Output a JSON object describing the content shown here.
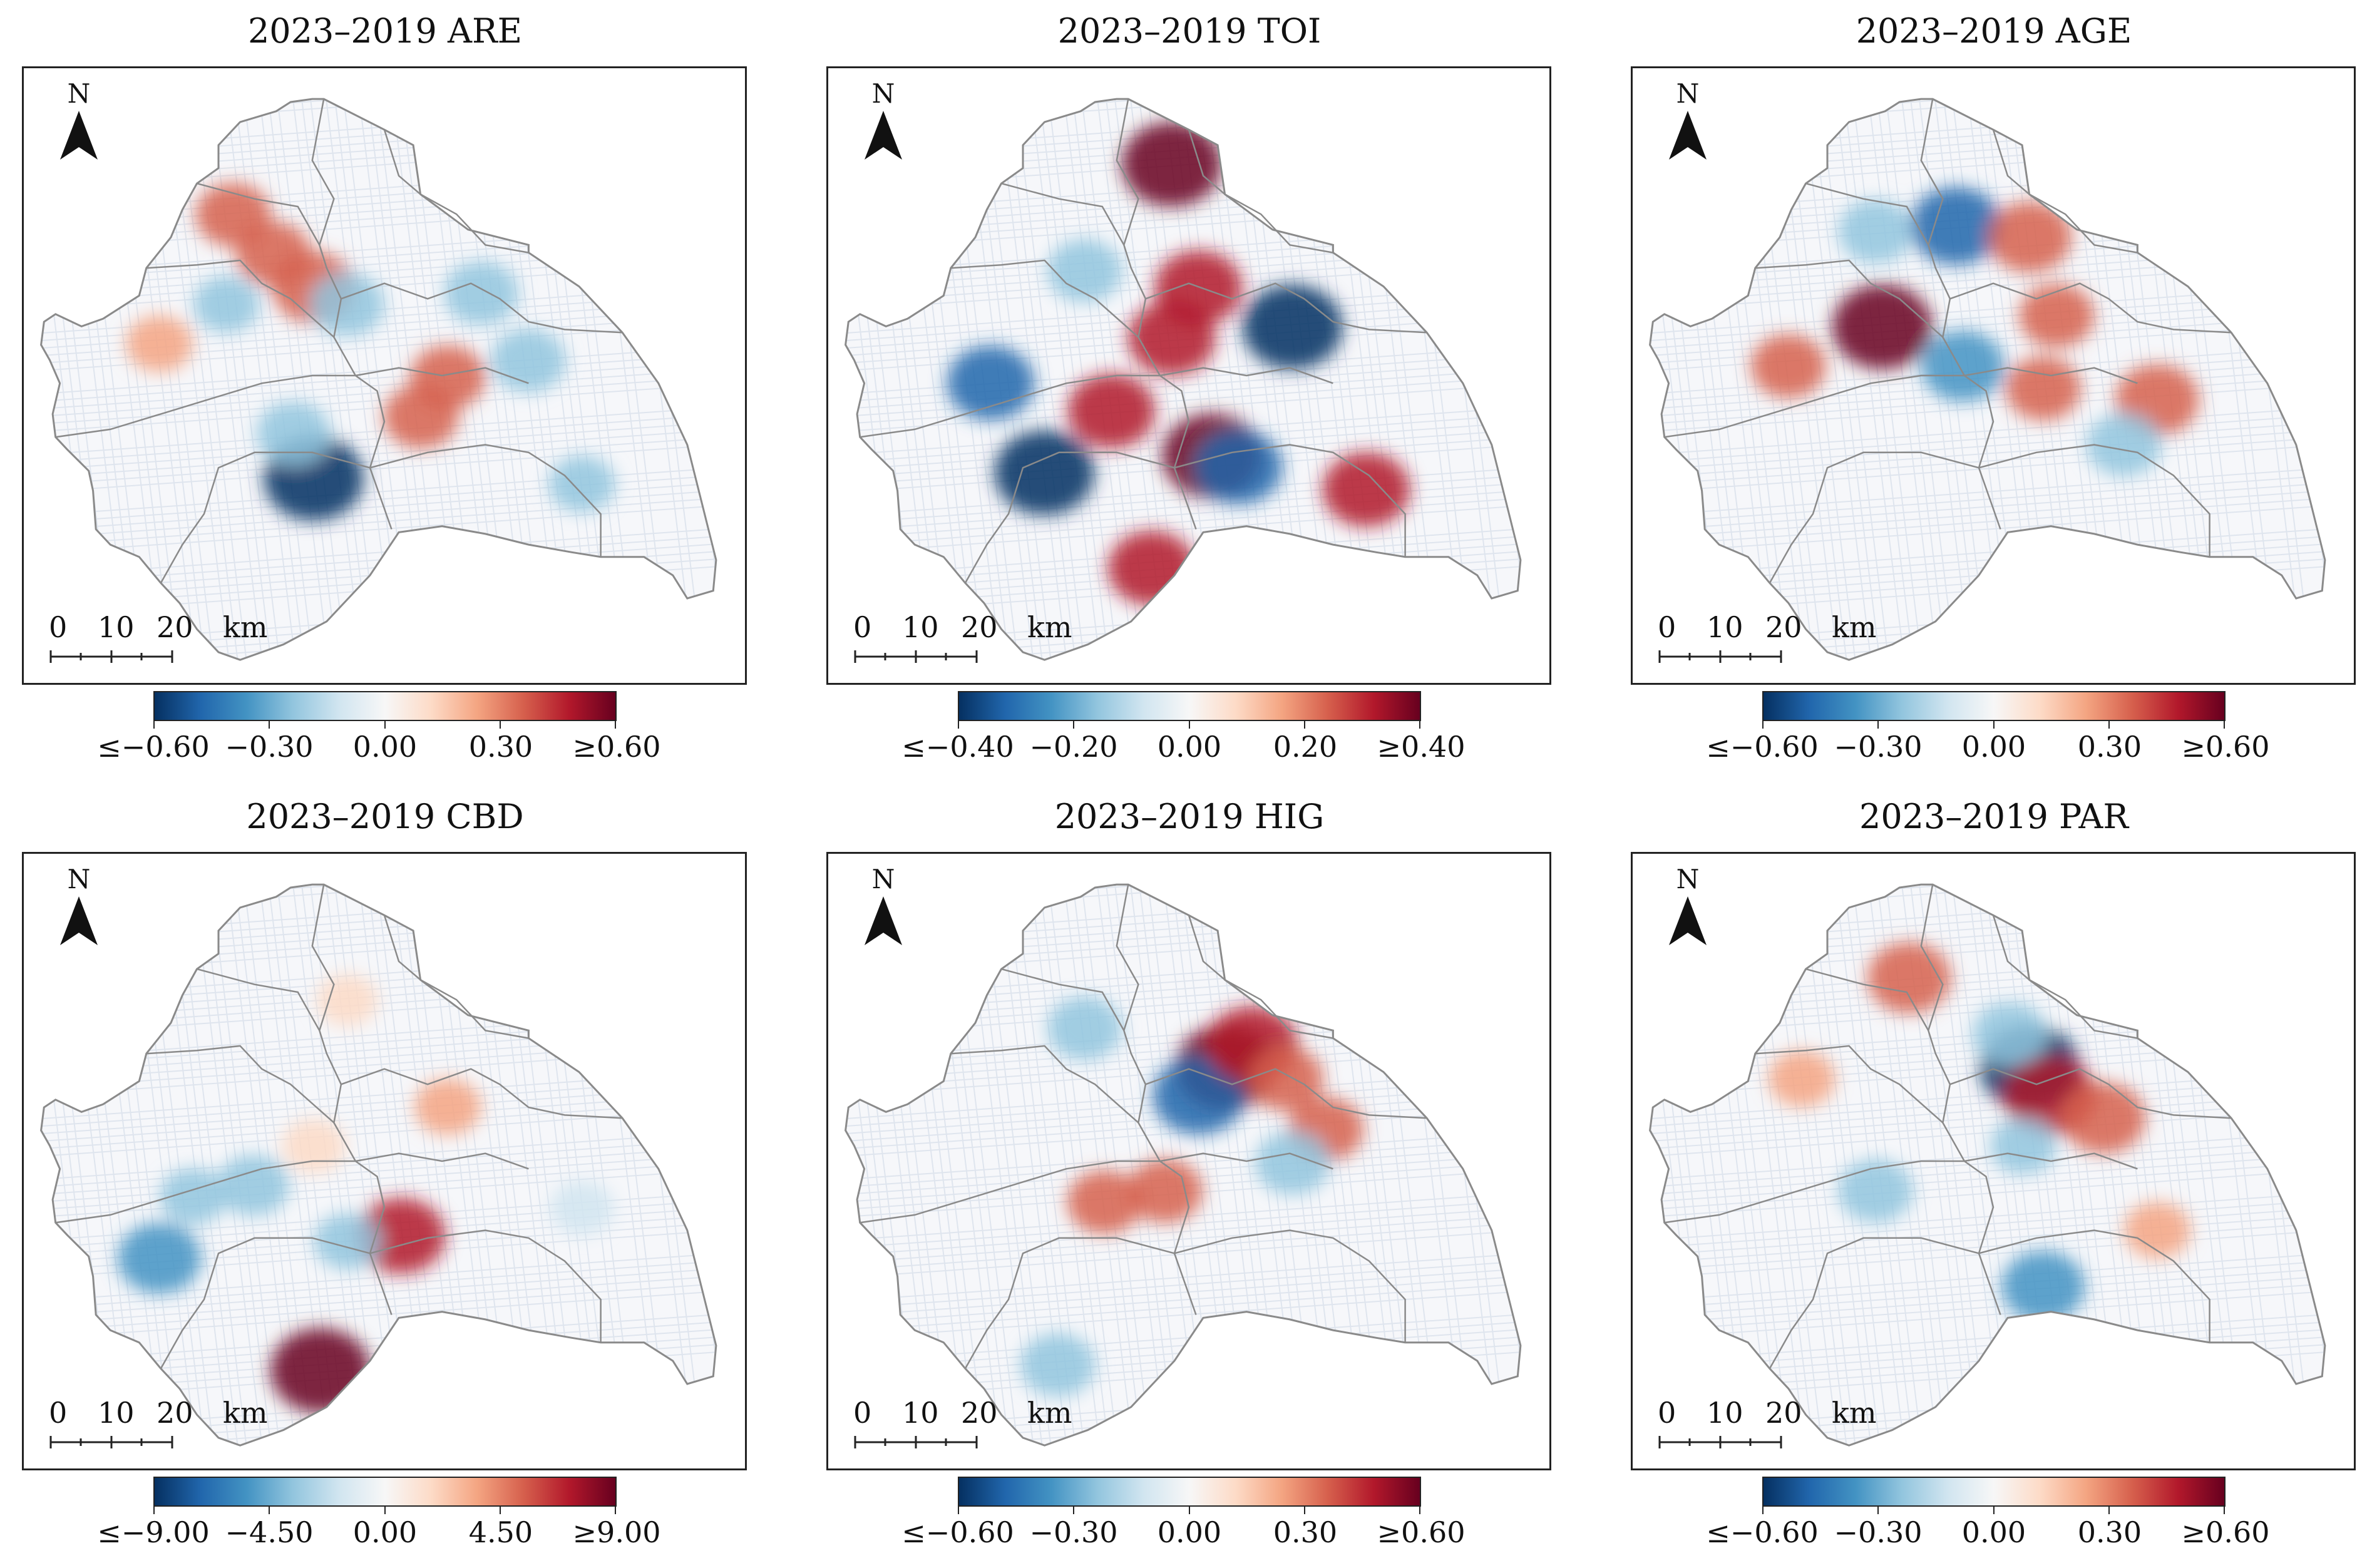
{
  "figure": {
    "north_label": "N",
    "scale_bar": {
      "labels": [
        "0",
        "10",
        "20"
      ],
      "unit": "km"
    },
    "colormap": [
      "#053061",
      "#2166ac",
      "#4393c3",
      "#92c5de",
      "#d1e5f0",
      "#f7f7f7",
      "#fddbc7",
      "#f4a582",
      "#d6604d",
      "#b2182b",
      "#67001f"
    ],
    "boundary_color": "#8a8a8a"
  },
  "chart_data": [
    {
      "type": "heatmap",
      "title": "2023–2019 ARE",
      "colorbar": {
        "min": -0.6,
        "max": 0.6,
        "tick_labels": [
          "≤−0.60",
          "−0.30",
          "0.00",
          "0.30",
          "≥0.60"
        ]
      },
      "hotspots": [
        {
          "lon": 0.4,
          "lat": 0.31,
          "value": -0.6
        },
        {
          "lon": 0.37,
          "lat": 0.39,
          "value": -0.3
        },
        {
          "lon": 0.56,
          "lat": 0.42,
          "value": 0.3
        },
        {
          "lon": 0.4,
          "lat": 0.65,
          "value": 0.4
        },
        {
          "lon": 0.6,
          "lat": 0.49,
          "value": 0.3
        },
        {
          "lon": 0.65,
          "lat": 0.64,
          "value": -0.3
        },
        {
          "lon": 0.28,
          "lat": 0.78,
          "value": 0.3
        },
        {
          "lon": 0.34,
          "lat": 0.71,
          "value": 0.3
        },
        {
          "lon": 0.17,
          "lat": 0.55,
          "value": 0.2
        },
        {
          "lon": 0.45,
          "lat": 0.62,
          "value": -0.3
        },
        {
          "lon": 0.72,
          "lat": 0.52,
          "value": -0.3
        },
        {
          "lon": 0.27,
          "lat": 0.62,
          "value": -0.2
        },
        {
          "lon": 0.8,
          "lat": 0.3,
          "value": -0.2
        }
      ]
    },
    {
      "type": "heatmap",
      "title": "2023–2019 TOI",
      "colorbar": {
        "min": -0.4,
        "max": 0.4,
        "tick_labels": [
          "≤−0.40",
          "−0.20",
          "0.00",
          "0.20",
          "≥0.40"
        ]
      },
      "hotspots": [
        {
          "lon": 0.66,
          "lat": 0.58,
          "value": -0.4
        },
        {
          "lon": 0.48,
          "lat": 0.87,
          "value": 0.4
        },
        {
          "lon": 0.54,
          "lat": 0.35,
          "value": 0.4
        },
        {
          "lon": 0.29,
          "lat": 0.32,
          "value": -0.4
        },
        {
          "lon": 0.48,
          "lat": 0.56,
          "value": 0.3
        },
        {
          "lon": 0.39,
          "lat": 0.43,
          "value": 0.3
        },
        {
          "lon": 0.58,
          "lat": 0.33,
          "value": -0.3
        },
        {
          "lon": 0.77,
          "lat": 0.29,
          "value": 0.3
        },
        {
          "lon": 0.21,
          "lat": 0.48,
          "value": -0.3
        },
        {
          "lon": 0.52,
          "lat": 0.65,
          "value": 0.3
        },
        {
          "lon": 0.45,
          "lat": 0.15,
          "value": 0.3
        },
        {
          "lon": 0.35,
          "lat": 0.68,
          "value": -0.2
        }
      ]
    },
    {
      "type": "heatmap",
      "title": "2023–2019 AGE",
      "colorbar": {
        "min": -0.6,
        "max": 0.6,
        "tick_labels": [
          "≤−0.60",
          "−0.30",
          "0.00",
          "0.30",
          "≥0.60"
        ]
      },
      "hotspots": [
        {
          "lon": 0.34,
          "lat": 0.58,
          "value": 0.6
        },
        {
          "lon": 0.45,
          "lat": 0.76,
          "value": -0.5
        },
        {
          "lon": 0.56,
          "lat": 0.74,
          "value": 0.4
        },
        {
          "lon": 0.6,
          "lat": 0.6,
          "value": 0.3
        },
        {
          "lon": 0.75,
          "lat": 0.45,
          "value": 0.4
        },
        {
          "lon": 0.46,
          "lat": 0.51,
          "value": -0.4
        },
        {
          "lon": 0.2,
          "lat": 0.51,
          "value": 0.3
        },
        {
          "lon": 0.7,
          "lat": 0.37,
          "value": -0.3
        },
        {
          "lon": 0.58,
          "lat": 0.47,
          "value": 0.3
        },
        {
          "lon": 0.33,
          "lat": 0.75,
          "value": -0.3
        }
      ]
    },
    {
      "type": "heatmap",
      "title": "2023–2019 CBD",
      "colorbar": {
        "min": -9.0,
        "max": 9.0,
        "tick_labels": [
          "≤−9.00",
          "−4.50",
          "0.00",
          "4.50",
          "≥9.00"
        ]
      },
      "hotspots": [
        {
          "lon": 0.41,
          "lat": 0.12,
          "value": 9.0
        },
        {
          "lon": 0.53,
          "lat": 0.36,
          "value": 7.0
        },
        {
          "lon": 0.17,
          "lat": 0.32,
          "value": -6.0
        },
        {
          "lon": 0.31,
          "lat": 0.45,
          "value": -4.0
        },
        {
          "lon": 0.22,
          "lat": 0.43,
          "value": -3.0
        },
        {
          "lon": 0.6,
          "lat": 0.59,
          "value": 3.0
        },
        {
          "lon": 0.4,
          "lat": 0.52,
          "value": 2.5
        },
        {
          "lon": 0.45,
          "lat": 0.35,
          "value": -3.0
        },
        {
          "lon": 0.45,
          "lat": 0.78,
          "value": 2.0
        },
        {
          "lon": 0.8,
          "lat": 0.41,
          "value": -2.5
        }
      ]
    },
    {
      "type": "heatmap",
      "title": "2023–2019 HIG",
      "colorbar": {
        "min": -0.6,
        "max": 0.6,
        "tick_labels": [
          "≤−0.60",
          "−0.30",
          "0.00",
          "0.30",
          "≥0.60"
        ]
      },
      "hotspots": [
        {
          "lon": 0.56,
          "lat": 0.66,
          "value": 0.6
        },
        {
          "lon": 0.52,
          "lat": 0.61,
          "value": -0.5
        },
        {
          "lon": 0.6,
          "lat": 0.7,
          "value": 0.5
        },
        {
          "lon": 0.65,
          "lat": 0.64,
          "value": 0.3
        },
        {
          "lon": 0.38,
          "lat": 0.42,
          "value": 0.3
        },
        {
          "lon": 0.35,
          "lat": 0.73,
          "value": -0.3
        },
        {
          "lon": 0.31,
          "lat": 0.13,
          "value": -0.3
        },
        {
          "lon": 0.71,
          "lat": 0.55,
          "value": 0.3
        },
        {
          "lon": 0.66,
          "lat": 0.49,
          "value": -0.3
        },
        {
          "lon": 0.47,
          "lat": 0.44,
          "value": 0.3
        }
      ]
    },
    {
      "type": "heatmap",
      "title": "2023–2019 PAR",
      "colorbar": {
        "min": -0.6,
        "max": 0.6,
        "tick_labels": [
          "≤−0.60",
          "−0.30",
          "0.00",
          "0.30",
          "≥0.60"
        ]
      },
      "hotspots": [
        {
          "lon": 0.56,
          "lat": 0.66,
          "value": -0.6
        },
        {
          "lon": 0.59,
          "lat": 0.61,
          "value": 0.5
        },
        {
          "lon": 0.67,
          "lat": 0.57,
          "value": 0.4
        },
        {
          "lon": 0.38,
          "lat": 0.82,
          "value": 0.4
        },
        {
          "lon": 0.53,
          "lat": 0.72,
          "value": -0.3
        },
        {
          "lon": 0.33,
          "lat": 0.44,
          "value": -0.3
        },
        {
          "lon": 0.55,
          "lat": 0.52,
          "value": -0.2
        },
        {
          "lon": 0.58,
          "lat": 0.27,
          "value": -0.4
        },
        {
          "lon": 0.75,
          "lat": 0.37,
          "value": 0.2
        },
        {
          "lon": 0.22,
          "lat": 0.64,
          "value": 0.2
        }
      ]
    }
  ]
}
